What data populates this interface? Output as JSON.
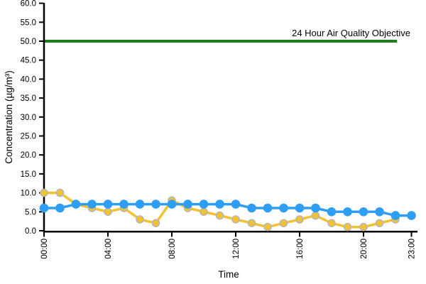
{
  "chart_data": {
    "type": "line",
    "title": "",
    "xlabel": "Time",
    "ylabel": "Concentration (µg/m³)",
    "x_hours": [
      0,
      1,
      2,
      3,
      4,
      5,
      6,
      7,
      8,
      9,
      10,
      11,
      12,
      13,
      14,
      15,
      16,
      17,
      18,
      19,
      20,
      21,
      22,
      23
    ],
    "xtick_hours": [
      0,
      4,
      8,
      12,
      16,
      20,
      23
    ],
    "xtick_labels": [
      "00:00",
      "04:00",
      "08:00",
      "12:00",
      "16:00",
      "20:00",
      "23:00"
    ],
    "ylim": [
      0,
      60
    ],
    "ytick_step": 5,
    "ytick_labels": [
      "0.0",
      "5.0",
      "10.0",
      "15.0",
      "20.0",
      "25.0",
      "30.0",
      "35.0",
      "40.0",
      "45.0",
      "50.0",
      "55.0",
      "60.0"
    ],
    "grid": false,
    "legend": "none",
    "axis_color": "#000000",
    "series": [
      {
        "id": "yellow-series",
        "color": "#f1c232",
        "marker_fill": "#f1c232",
        "marker_stroke": "#b7b7b7",
        "line_width": 3.5,
        "marker_radius": 5,
        "values": [
          10,
          10,
          7,
          6,
          5,
          6,
          3,
          2,
          8,
          6,
          5,
          4,
          3,
          2,
          1,
          2,
          3,
          4,
          2,
          1,
          1,
          2,
          3,
          null
        ]
      },
      {
        "id": "blue-series",
        "color": "#2e9ef4",
        "marker_fill": "#2e9ef4",
        "marker_stroke": "#2e9ef4",
        "line_width": 3.5,
        "marker_radius": 5.5,
        "values": [
          6,
          6,
          7,
          7,
          7,
          7,
          7,
          7,
          7,
          7,
          7,
          7,
          7,
          6,
          6,
          6,
          6,
          6,
          5,
          5,
          5,
          5,
          4,
          4
        ]
      }
    ],
    "reference_line": {
      "value": 50,
      "label": "24 Hour Air Quality Objective",
      "color": "#1e7d1e",
      "line_width": 4,
      "x_start_hour": 0,
      "x_end_hour": 22.1
    }
  }
}
